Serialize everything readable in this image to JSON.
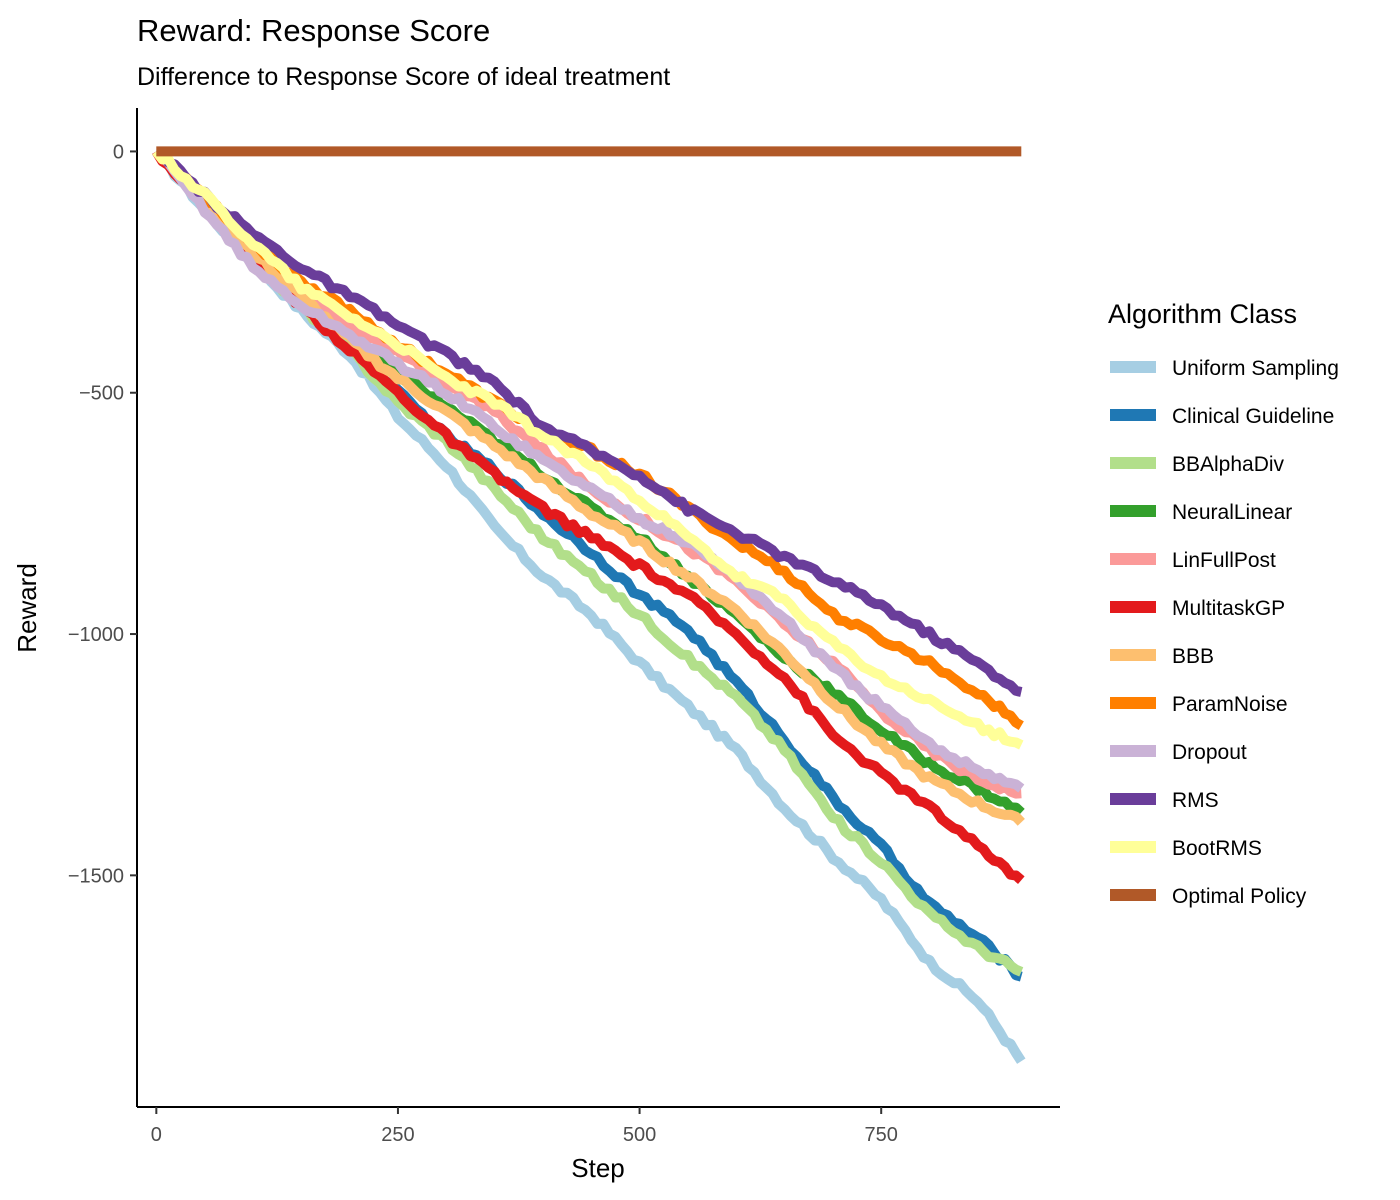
{
  "chart_data": {
    "type": "line",
    "title": "Reward: Response Score",
    "subtitle": "Difference to Response Score of ideal treatment",
    "xlabel": "Step",
    "ylabel": "Reward",
    "xlim": [
      -20,
      935
    ],
    "ylim": [
      -1980,
      90
    ],
    "x_ticks": [
      0,
      250,
      500,
      750
    ],
    "x_tick_labels": [
      "0",
      "250",
      "500",
      "750"
    ],
    "y_ticks": [
      0,
      -500,
      -1000,
      -1500
    ],
    "y_tick_labels": [
      "0",
      "−500",
      "−1000",
      "−1500"
    ],
    "grid": false,
    "legend": {
      "title": "Algorithm Class",
      "position": "right"
    },
    "series": [
      {
        "name": "Uniform Sampling",
        "color": "#A6CEE3",
        "points": [
          [
            0,
            0
          ],
          [
            50,
            -120
          ],
          [
            100,
            -230
          ],
          [
            150,
            -330
          ],
          [
            200,
            -420
          ],
          [
            250,
            -550
          ],
          [
            300,
            -650
          ],
          [
            350,
            -780
          ],
          [
            400,
            -880
          ],
          [
            450,
            -960
          ],
          [
            500,
            -1060
          ],
          [
            550,
            -1150
          ],
          [
            600,
            -1240
          ],
          [
            650,
            -1360
          ],
          [
            700,
            -1460
          ],
          [
            750,
            -1550
          ],
          [
            800,
            -1680
          ],
          [
            850,
            -1760
          ],
          [
            895,
            -1885
          ]
        ]
      },
      {
        "name": "Clinical Guideline",
        "color": "#1F78B4",
        "points": [
          [
            0,
            0
          ],
          [
            50,
            -110
          ],
          [
            100,
            -230
          ],
          [
            150,
            -310
          ],
          [
            200,
            -400
          ],
          [
            250,
            -500
          ],
          [
            300,
            -590
          ],
          [
            350,
            -660
          ],
          [
            400,
            -750
          ],
          [
            450,
            -830
          ],
          [
            500,
            -920
          ],
          [
            550,
            -990
          ],
          [
            600,
            -1100
          ],
          [
            650,
            -1220
          ],
          [
            700,
            -1340
          ],
          [
            750,
            -1440
          ],
          [
            800,
            -1560
          ],
          [
            850,
            -1630
          ],
          [
            895,
            -1710
          ]
        ]
      },
      {
        "name": "BBAlphaDiv",
        "color": "#B2DF8A",
        "points": [
          [
            0,
            0
          ],
          [
            50,
            -110
          ],
          [
            100,
            -230
          ],
          [
            150,
            -320
          ],
          [
            200,
            -410
          ],
          [
            250,
            -520
          ],
          [
            300,
            -600
          ],
          [
            350,
            -700
          ],
          [
            400,
            -800
          ],
          [
            450,
            -880
          ],
          [
            500,
            -960
          ],
          [
            550,
            -1050
          ],
          [
            600,
            -1130
          ],
          [
            650,
            -1240
          ],
          [
            700,
            -1380
          ],
          [
            750,
            -1470
          ],
          [
            800,
            -1580
          ],
          [
            850,
            -1650
          ],
          [
            895,
            -1700
          ]
        ]
      },
      {
        "name": "NeuralLinear",
        "color": "#33A02C",
        "points": [
          [
            0,
            0
          ],
          [
            50,
            -100
          ],
          [
            100,
            -210
          ],
          [
            150,
            -300
          ],
          [
            200,
            -380
          ],
          [
            250,
            -460
          ],
          [
            300,
            -530
          ],
          [
            350,
            -600
          ],
          [
            400,
            -670
          ],
          [
            450,
            -740
          ],
          [
            500,
            -800
          ],
          [
            550,
            -880
          ],
          [
            600,
            -960
          ],
          [
            650,
            -1050
          ],
          [
            700,
            -1120
          ],
          [
            750,
            -1200
          ],
          [
            800,
            -1270
          ],
          [
            850,
            -1320
          ],
          [
            895,
            -1370
          ]
        ]
      },
      {
        "name": "LinFullPost",
        "color": "#FB9A99",
        "points": [
          [
            0,
            0
          ],
          [
            50,
            -100
          ],
          [
            100,
            -200
          ],
          [
            150,
            -290
          ],
          [
            200,
            -360
          ],
          [
            250,
            -420
          ],
          [
            300,
            -480
          ],
          [
            350,
            -540
          ],
          [
            400,
            -620
          ],
          [
            450,
            -700
          ],
          [
            500,
            -760
          ],
          [
            550,
            -820
          ],
          [
            600,
            -890
          ],
          [
            650,
            -980
          ],
          [
            700,
            -1060
          ],
          [
            750,
            -1160
          ],
          [
            800,
            -1240
          ],
          [
            850,
            -1300
          ],
          [
            895,
            -1330
          ]
        ]
      },
      {
        "name": "MultitaskGP",
        "color": "#E31A1C",
        "points": [
          [
            0,
            0
          ],
          [
            50,
            -110
          ],
          [
            100,
            -220
          ],
          [
            150,
            -320
          ],
          [
            200,
            -410
          ],
          [
            250,
            -500
          ],
          [
            300,
            -590
          ],
          [
            350,
            -670
          ],
          [
            400,
            -740
          ],
          [
            450,
            -800
          ],
          [
            500,
            -860
          ],
          [
            550,
            -920
          ],
          [
            600,
            -1000
          ],
          [
            650,
            -1090
          ],
          [
            700,
            -1210
          ],
          [
            750,
            -1290
          ],
          [
            800,
            -1360
          ],
          [
            850,
            -1440
          ],
          [
            895,
            -1510
          ]
        ]
      },
      {
        "name": "BBB",
        "color": "#FDBF6F",
        "points": [
          [
            0,
            0
          ],
          [
            50,
            -100
          ],
          [
            100,
            -210
          ],
          [
            150,
            -300
          ],
          [
            200,
            -390
          ],
          [
            250,
            -470
          ],
          [
            300,
            -540
          ],
          [
            350,
            -610
          ],
          [
            400,
            -680
          ],
          [
            450,
            -750
          ],
          [
            500,
            -810
          ],
          [
            550,
            -880
          ],
          [
            600,
            -950
          ],
          [
            650,
            -1040
          ],
          [
            700,
            -1140
          ],
          [
            750,
            -1230
          ],
          [
            800,
            -1300
          ],
          [
            850,
            -1350
          ],
          [
            895,
            -1390
          ]
        ]
      },
      {
        "name": "ParamNoise",
        "color": "#FF7F00",
        "points": [
          [
            0,
            0
          ],
          [
            50,
            -90
          ],
          [
            100,
            -190
          ],
          [
            150,
            -270
          ],
          [
            200,
            -330
          ],
          [
            250,
            -400
          ],
          [
            300,
            -460
          ],
          [
            350,
            -520
          ],
          [
            400,
            -580
          ],
          [
            450,
            -620
          ],
          [
            500,
            -670
          ],
          [
            550,
            -740
          ],
          [
            600,
            -810
          ],
          [
            650,
            -870
          ],
          [
            700,
            -960
          ],
          [
            750,
            -1010
          ],
          [
            800,
            -1060
          ],
          [
            850,
            -1120
          ],
          [
            895,
            -1190
          ]
        ]
      },
      {
        "name": "Dropout",
        "color": "#CAB2D6",
        "points": [
          [
            0,
            0
          ],
          [
            50,
            -120
          ],
          [
            100,
            -240
          ],
          [
            150,
            -320
          ],
          [
            200,
            -380
          ],
          [
            250,
            -440
          ],
          [
            300,
            -500
          ],
          [
            350,
            -570
          ],
          [
            400,
            -640
          ],
          [
            450,
            -700
          ],
          [
            500,
            -760
          ],
          [
            550,
            -810
          ],
          [
            600,
            -880
          ],
          [
            650,
            -970
          ],
          [
            700,
            -1070
          ],
          [
            750,
            -1150
          ],
          [
            800,
            -1230
          ],
          [
            850,
            -1280
          ],
          [
            895,
            -1320
          ]
        ]
      },
      {
        "name": "RMS",
        "color": "#6A3D9A",
        "points": [
          [
            0,
            0
          ],
          [
            50,
            -90
          ],
          [
            100,
            -170
          ],
          [
            150,
            -240
          ],
          [
            200,
            -300
          ],
          [
            250,
            -360
          ],
          [
            300,
            -420
          ],
          [
            350,
            -480
          ],
          [
            400,
            -570
          ],
          [
            450,
            -620
          ],
          [
            500,
            -670
          ],
          [
            550,
            -740
          ],
          [
            600,
            -790
          ],
          [
            650,
            -840
          ],
          [
            700,
            -890
          ],
          [
            750,
            -940
          ],
          [
            800,
            -1000
          ],
          [
            850,
            -1060
          ],
          [
            895,
            -1120
          ]
        ]
      },
      {
        "name": "BootRMS",
        "color": "#FFFF99",
        "points": [
          [
            0,
            0
          ],
          [
            50,
            -90
          ],
          [
            100,
            -190
          ],
          [
            150,
            -280
          ],
          [
            200,
            -340
          ],
          [
            250,
            -400
          ],
          [
            300,
            -470
          ],
          [
            350,
            -520
          ],
          [
            400,
            -590
          ],
          [
            450,
            -650
          ],
          [
            500,
            -720
          ],
          [
            550,
            -800
          ],
          [
            600,
            -880
          ],
          [
            650,
            -930
          ],
          [
            700,
            -1020
          ],
          [
            750,
            -1090
          ],
          [
            800,
            -1140
          ],
          [
            850,
            -1190
          ],
          [
            895,
            -1230
          ]
        ]
      },
      {
        "name": "Optimal Policy",
        "color": "#B15928",
        "points": [
          [
            0,
            0
          ],
          [
            895,
            0
          ]
        ]
      }
    ]
  }
}
